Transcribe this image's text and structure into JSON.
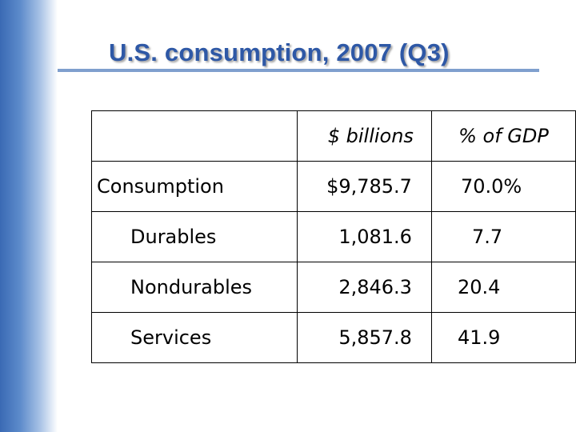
{
  "slide": {
    "title": "U.S. consumption, 2007 (Q3)"
  },
  "table": {
    "headers": [
      "",
      "$ billions",
      "% of GDP"
    ],
    "rows": [
      {
        "label": "Consumption",
        "billions": "$9,785.7",
        "pct_gdp": "70.0%"
      },
      {
        "label": "Durables",
        "billions": "1,081.6",
        "pct_gdp": "7.7"
      },
      {
        "label": "Nondurables",
        "billions": "2,846.3",
        "pct_gdp": "20.4"
      },
      {
        "label": "Services",
        "billions": "5,857.8",
        "pct_gdp": "41.9"
      }
    ]
  },
  "colors": {
    "title": "#2e58a6",
    "rule": "#7f9fce",
    "sidebar": "#3a6ab4"
  }
}
